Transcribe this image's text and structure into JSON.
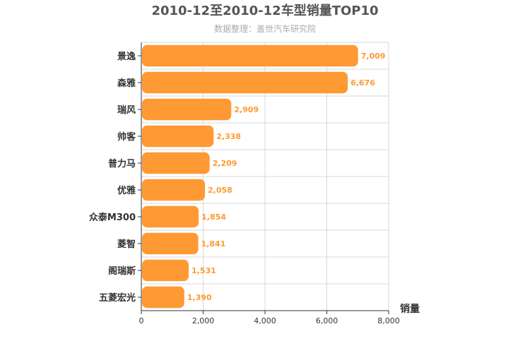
{
  "chart_data": {
    "type": "bar",
    "orientation": "horizontal",
    "title": "2010-12至2010-12车型销量TOP10",
    "subtitle": "数据整理：盖世汽车研究院",
    "categories": [
      "景逸",
      "森雅",
      "瑞风",
      "帅客",
      "普力马",
      "优雅",
      "众泰M300",
      "菱智",
      "阁瑞斯",
      "五菱宏光"
    ],
    "values": [
      7009,
      6676,
      2909,
      2338,
      2209,
      2058,
      1854,
      1841,
      1531,
      1390
    ],
    "value_labels": [
      "7,009",
      "6,676",
      "2,909",
      "2,338",
      "2,209",
      "2,058",
      "1,854",
      "1,841",
      "1,531",
      "1,390"
    ],
    "xlabel": "销量",
    "ylabel": "",
    "xlim": [
      0,
      8000
    ],
    "ticks": [
      0,
      2000,
      4000,
      6000,
      8000
    ],
    "tick_labels": [
      "0",
      "2,000",
      "4,000",
      "6,000",
      "8,000"
    ],
    "grid": true,
    "bar_color": "#ff9933",
    "label_color": "#ff9933"
  }
}
